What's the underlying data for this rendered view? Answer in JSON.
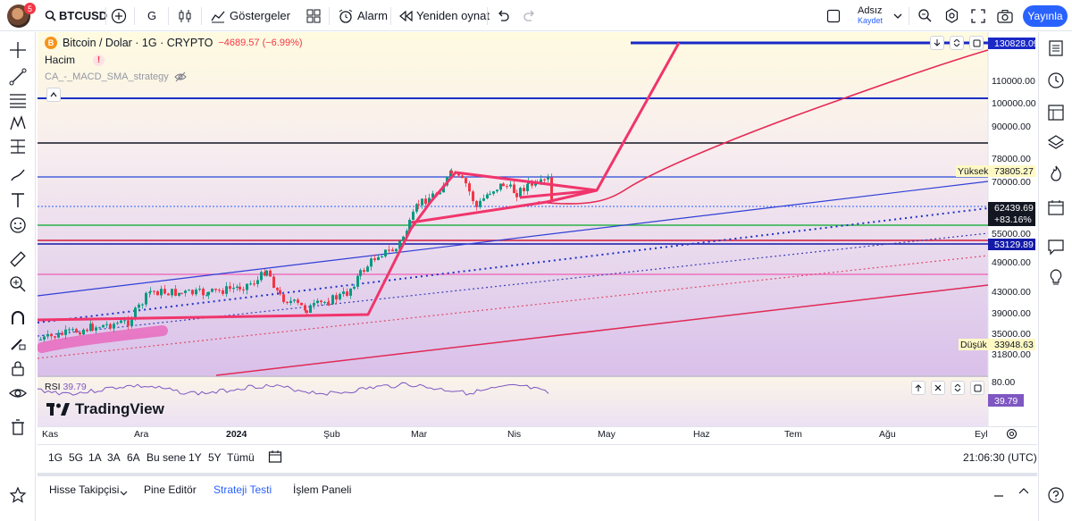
{
  "topbar": {
    "notification_count": "5",
    "symbol": "BTCUSD",
    "interval": "G",
    "indicators_label": "Göstergeler",
    "alert_label": "Alarm",
    "replay_label": "Yeniden oynat",
    "layout_name": "Adsız",
    "layout_status": "Kaydet",
    "publish_label": "Yayınla"
  },
  "legend": {
    "coin_letter": "B",
    "title": "Bitcoin / Dolar · 1G · CRYPTO",
    "change": "−4689.57 (−6.99%)",
    "volume_label": "Hacim",
    "strategy_label": "CA_-_MACD_SMA_strategy"
  },
  "price_axis": {
    "ticks": [
      "110000.00",
      "100000.00",
      "90000.00",
      "78000.00",
      "70000.00",
      "55000.00",
      "49000.00",
      "43000.00",
      "39000.00",
      "35000.00",
      "31800.00"
    ],
    "labels": {
      "top": "130828.09",
      "high_name": "Yüksek",
      "high": "73805.27",
      "last": "62439.69",
      "last_change": "+83.16%",
      "mid": "53129.89",
      "low_name": "Düşük",
      "low": "33948.63"
    },
    "colors": {
      "accent": "#2962ff",
      "up": "#089981",
      "down": "#f23645",
      "drawing": "#f0356c"
    }
  },
  "rsi": {
    "label": "RSI",
    "value": "39.79",
    "tick": "80.00",
    "current": "39.79"
  },
  "branding": {
    "logo_text": "TradingView"
  },
  "time_axis": {
    "labels": [
      "Kas",
      "Ara",
      "2024",
      "Şub",
      "Mar",
      "Nis",
      "May",
      "Haz",
      "Tem",
      "Ağu",
      "Eyl"
    ]
  },
  "range_bar": {
    "ranges": [
      "1G",
      "5G",
      "1A",
      "3A",
      "6A",
      "Bu sene",
      "1Y",
      "5Y",
      "Tümü"
    ],
    "clock": "21:06:30 (UTC)"
  },
  "bottom_panel": {
    "tabs": [
      "Hisse Takipçisi",
      "Pine Editör",
      "Strateji Testi",
      "İşlem Paneli"
    ],
    "active_tab": "Strateji Testi"
  }
}
